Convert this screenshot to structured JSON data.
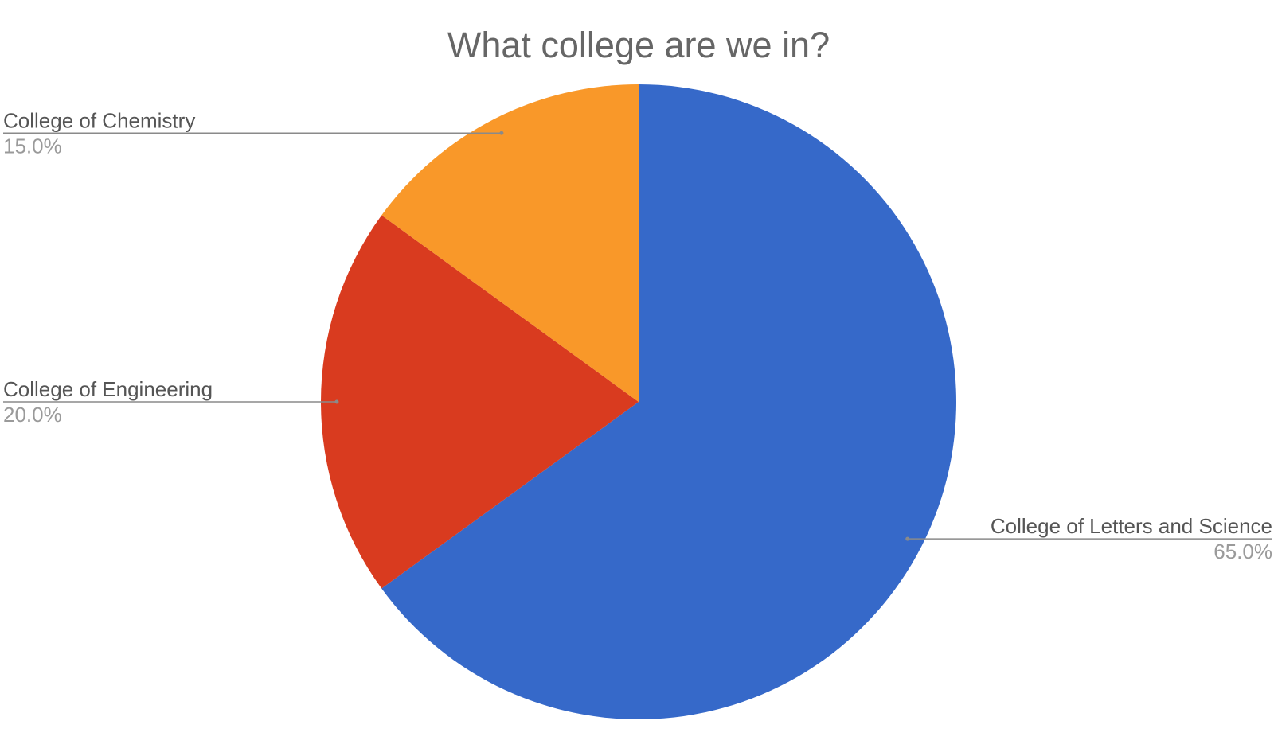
{
  "chart_data": {
    "type": "pie",
    "title": "What college are we in?",
    "categories": [
      "College of Letters and Science",
      "College of Engineering",
      "College of Chemistry"
    ],
    "values": [
      65,
      20,
      15
    ],
    "value_labels": [
      "65.0%",
      "20.0%",
      "15.0%"
    ],
    "colors": [
      "#3669c9",
      "#d93b1f",
      "#f99829"
    ]
  }
}
